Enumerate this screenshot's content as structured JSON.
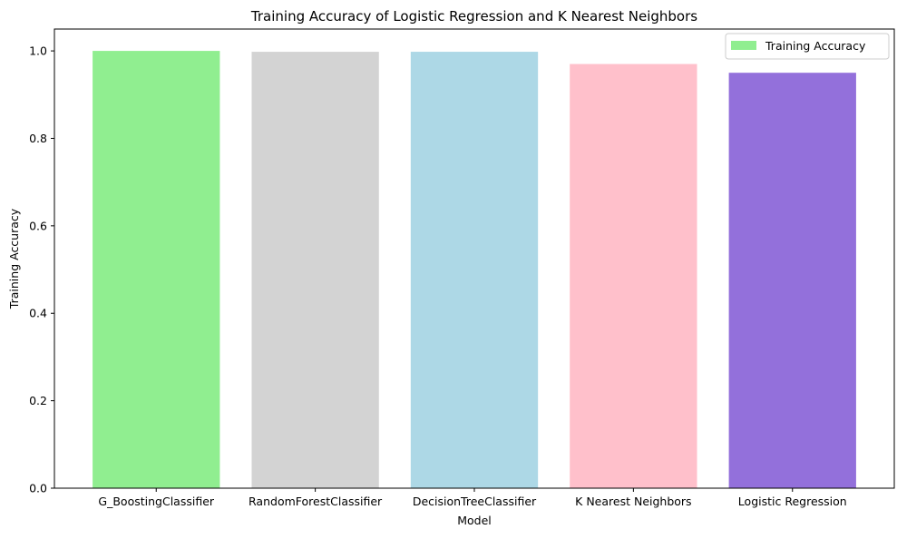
{
  "chart_data": {
    "type": "bar",
    "title": "Training Accuracy of Logistic Regression and K Nearest Neighbors",
    "xlabel": "Model",
    "ylabel": "Training Accuracy",
    "categories": [
      "G_BoostingClassifier",
      "RandomForestClassifier",
      "DecisionTreeClassifier",
      "K Nearest Neighbors",
      "Logistic Regression"
    ],
    "series": [
      {
        "name": "Training Accuracy",
        "values": [
          1.0,
          0.998,
          0.998,
          0.97,
          0.95
        ],
        "colors": [
          "#90ee90",
          "#d3d3d3",
          "#add8e6",
          "#ffc0cb",
          "#9370db"
        ]
      }
    ],
    "ylim": [
      0,
      1.05
    ],
    "yticks": [
      0.0,
      0.2,
      0.4,
      0.6,
      0.8,
      1.0
    ],
    "ytick_labels": [
      "0.0",
      "0.2",
      "0.4",
      "0.6",
      "0.8",
      "1.0"
    ],
    "grid": false,
    "legend_position": "top-right"
  }
}
